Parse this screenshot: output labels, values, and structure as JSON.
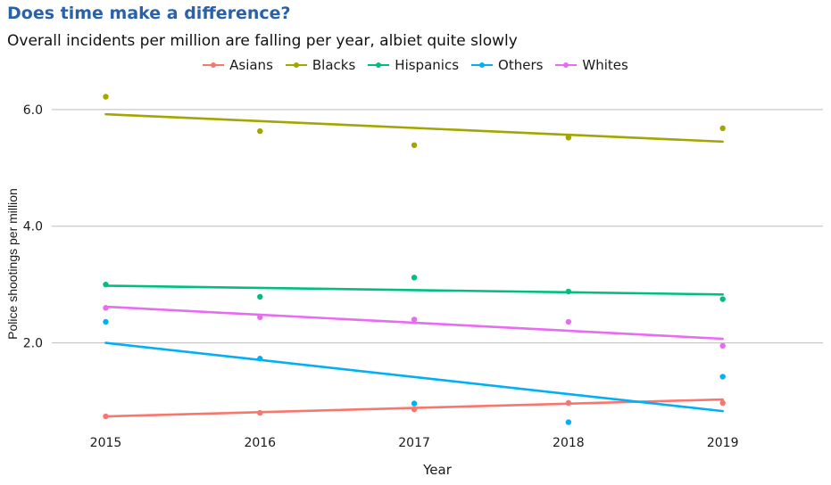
{
  "chart_data": {
    "type": "scatter",
    "title": "Does time make a difference?",
    "subtitle": "Overall incidents per million are falling per year, albiet quite slowly",
    "xlabel": "Year",
    "ylabel": "Police shootings per million",
    "x": [
      2015,
      2016,
      2017,
      2018,
      2019
    ],
    "x_tick_labels": [
      "2015",
      "2016",
      "2017",
      "2018",
      "2019"
    ],
    "y_tick_labels": [
      "2.0",
      "4.0",
      "6.0"
    ],
    "y_ticks": [
      2.0,
      4.0,
      6.0
    ],
    "ylim": [
      0.45,
      6.35
    ],
    "xlim": [
      2014.65,
      2019.65
    ],
    "grid": "horizontal major only",
    "legend_position": "top",
    "series": [
      {
        "name": "Asians",
        "color": "#f8766d",
        "values": [
          0.74,
          0.8,
          0.86,
          0.97,
          0.97
        ],
        "trend": [
          0.74,
          1.03
        ]
      },
      {
        "name": "Blacks",
        "color": "#a3a500",
        "values": [
          6.22,
          5.63,
          5.39,
          5.52,
          5.68
        ],
        "trend": [
          5.92,
          5.45
        ]
      },
      {
        "name": "Hispanics",
        "color": "#00bf7d",
        "values": [
          3.0,
          2.79,
          3.12,
          2.88,
          2.75
        ],
        "trend": [
          2.98,
          2.83
        ]
      },
      {
        "name": "Others",
        "color": "#00b0f6",
        "values": [
          2.36,
          1.73,
          0.96,
          0.64,
          1.42
        ],
        "trend": [
          2.0,
          0.83
        ]
      },
      {
        "name": "Whites",
        "color": "#e76bf3",
        "values": [
          2.6,
          2.44,
          2.4,
          2.36,
          1.95
        ],
        "trend": [
          2.62,
          2.07
        ]
      }
    ]
  }
}
